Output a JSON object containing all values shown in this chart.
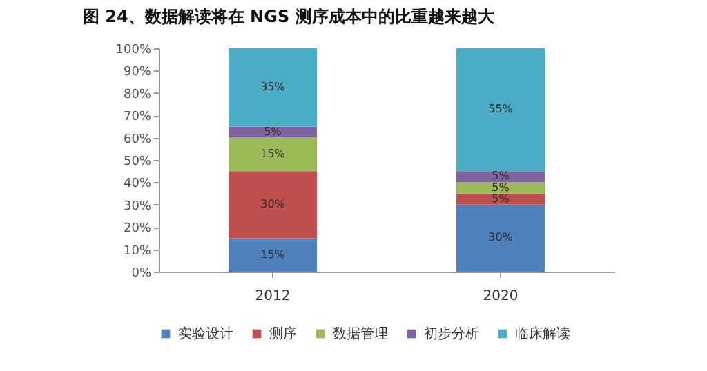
{
  "chart_data": {
    "type": "bar",
    "title": "图 24、数据解读将在 NGS 测序成本中的比重越来越大",
    "categories": [
      "2012",
      "2020"
    ],
    "stacked": true,
    "legend": "bottom",
    "grid": false,
    "ylim": [
      0,
      100
    ],
    "yticks": [
      {
        "value": 0,
        "label": "0%"
      },
      {
        "value": 10,
        "label": "10%"
      },
      {
        "value": 20,
        "label": "20%"
      },
      {
        "value": 30,
        "label": "30%"
      },
      {
        "value": 40,
        "label": "40%"
      },
      {
        "value": 50,
        "label": "50%"
      },
      {
        "value": 60,
        "label": "60%"
      },
      {
        "value": 70,
        "label": "70%"
      },
      {
        "value": 80,
        "label": "80%"
      },
      {
        "value": 90,
        "label": "90%"
      },
      {
        "value": 100,
        "label": "100%"
      }
    ],
    "series": [
      {
        "name": "实验设计",
        "color": "#4f81bd",
        "values": [
          15,
          30
        ],
        "value_labels": [
          "15%",
          "30%"
        ]
      },
      {
        "name": "测序",
        "color": "#c0504d",
        "values": [
          30,
          5
        ],
        "value_labels": [
          "30%",
          "5%"
        ]
      },
      {
        "name": "数据管理",
        "color": "#9bbb59",
        "values": [
          15,
          5
        ],
        "value_labels": [
          "15%",
          "5%"
        ]
      },
      {
        "name": "初步分析",
        "color": "#8064a2",
        "values": [
          5,
          5
        ],
        "value_labels": [
          "5%",
          "5%"
        ]
      },
      {
        "name": "临床解读",
        "color": "#4bacc6",
        "values": [
          35,
          55
        ],
        "value_labels": [
          "35%",
          "55%"
        ]
      }
    ]
  }
}
